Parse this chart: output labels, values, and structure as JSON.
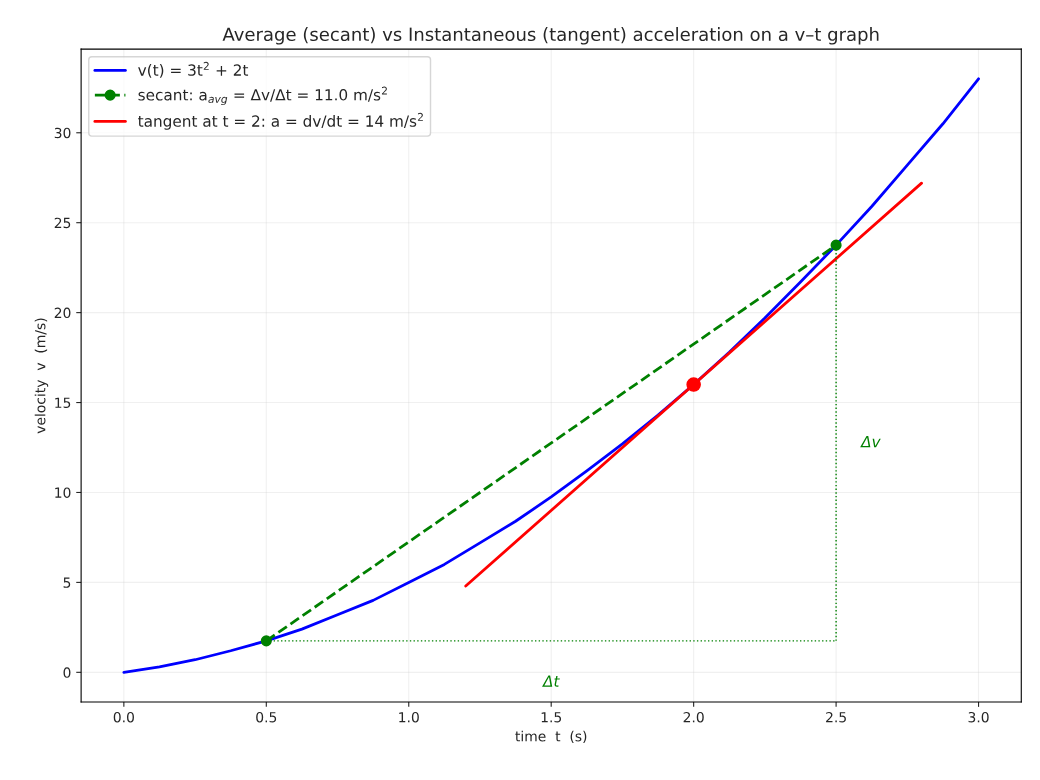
{
  "chart_data": {
    "type": "line",
    "title": "Average (secant) vs Instantaneous (tangent) acceleration on a v–t graph",
    "xlabel": "time  t  (s)",
    "ylabel": "velocity  v  (m/s)",
    "series": [
      {
        "name": "v(t) = 3t$^{2}$ + 2t",
        "color": "#0000ff",
        "x": [
          0,
          0.125,
          0.25,
          0.375,
          0.5,
          0.625,
          0.75,
          0.875,
          1.0,
          1.125,
          1.25,
          1.375,
          1.5,
          1.625,
          1.75,
          1.875,
          2.0,
          2.125,
          2.25,
          2.375,
          2.5,
          2.625,
          2.75,
          2.875,
          3.0
        ],
        "values": [
          0,
          0.3,
          0.7,
          1.2,
          1.75,
          2.4,
          3.2,
          4.0,
          5.0,
          6.0,
          7.2,
          8.4,
          9.75,
          11.2,
          12.7,
          14.3,
          16.0,
          17.8,
          19.7,
          21.7,
          23.75,
          25.9,
          28.2,
          30.5,
          33.0
        ]
      },
      {
        "name": "secant: a$_{avg}$ = Δv/Δt = 11.0 m/s$^{2}$",
        "color": "#008000",
        "line_style": "dashed",
        "marker": "circle",
        "x": [
          0.5,
          2.5
        ],
        "values": [
          1.75,
          23.75
        ]
      },
      {
        "name": "tangent at t = 2: a = dv/dt = 14 m/s$^{2}$",
        "color": "#ff0000",
        "x": [
          1.2,
          2.8
        ],
        "values": [
          4.8,
          27.2
        ]
      },
      {
        "color": "#ff0000",
        "type": "scatter",
        "marker": "circle",
        "x": [
          2.0
        ],
        "values": [
          16.0
        ]
      },
      {
        "color": "#008000",
        "line_style": "dotted",
        "x": [
          0.5,
          2.5
        ],
        "values": [
          1.75,
          1.75
        ]
      },
      {
        "color": "#008000",
        "line_style": "dotted",
        "x": [
          2.5,
          2.5
        ],
        "values": [
          1.75,
          23.75
        ]
      }
    ],
    "annotations": [
      "Δt",
      "Δv"
    ],
    "xlim": [
      -0.15,
      3.15
    ],
    "ylim": [
      -1.65,
      34.65
    ],
    "xticks": [
      {
        "value": 0,
        "label": "0.0"
      },
      {
        "value": 0.5,
        "label": "0.5"
      },
      {
        "value": 1,
        "label": "1.0"
      },
      {
        "value": 1.5,
        "label": "1.5"
      },
      {
        "value": 2,
        "label": "2.0"
      },
      {
        "value": 2.5,
        "label": "2.5"
      },
      {
        "value": 3,
        "label": "3.0"
      }
    ],
    "yticks": [
      0,
      5,
      10,
      15,
      20,
      25,
      30
    ],
    "grid": true,
    "legend": "top left"
  }
}
